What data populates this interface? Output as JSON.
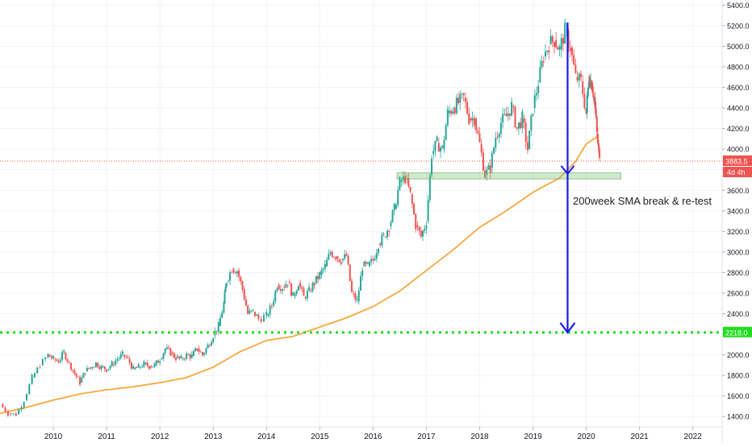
{
  "chart_data": {
    "type": "line",
    "timeframe": "weekly candlestick",
    "ylim": [
      1300,
      5450
    ],
    "xlim": [
      2009.0,
      2022.55
    ],
    "y_ticks": [
      1400,
      1600,
      1800,
      2000,
      2200,
      2400,
      2600,
      2800,
      3000,
      3200,
      3400,
      3600,
      3800,
      4000,
      4200,
      4400,
      4600,
      4800,
      5000,
      5200,
      5400
    ],
    "y_tick_labels": [
      "1400.0",
      "1600.0",
      "1800.0",
      "2000.0",
      "2200.0",
      "2400.0",
      "2600.0",
      "2800.0",
      "3000.0",
      "3200.0",
      "3400.0",
      "3600.0",
      "3800.0",
      "4000.0",
      "4200.0",
      "4400.0",
      "4600.0",
      "4800.0",
      "5000.0",
      "5200.0",
      "5400.0"
    ],
    "x_ticks": [
      {
        "x": 2010.0,
        "label": "2010"
      },
      {
        "x": 2011.0,
        "label": "2011"
      },
      {
        "x": 2012.0,
        "label": "2012"
      },
      {
        "x": 2013.0,
        "label": "2013"
      },
      {
        "x": 2014.0,
        "label": "2014"
      },
      {
        "x": 2015.0,
        "label": "2015"
      },
      {
        "x": 2016.0,
        "label": "2016"
      },
      {
        "x": 2017.0,
        "label": "2017"
      },
      {
        "x": 2018.0,
        "label": "2018"
      },
      {
        "x": 2019.0,
        "label": "2019"
      },
      {
        "x": 2020.0,
        "label": "2020"
      },
      {
        "x": 2021.0,
        "label": "2021"
      },
      {
        "x": 2022.0,
        "label": "2022"
      }
    ],
    "series": [
      {
        "type": "candlestick",
        "up_color": "#26a69a",
        "down_color": "#ef5350",
        "points": [
          [
            2009.0,
            1520
          ],
          [
            2009.15,
            1430
          ],
          [
            2009.3,
            1420
          ],
          [
            2009.45,
            1560
          ],
          [
            2009.6,
            1780
          ],
          [
            2009.75,
            1900
          ],
          [
            2009.9,
            2000
          ],
          [
            2010.0,
            1960
          ],
          [
            2010.1,
            1940
          ],
          [
            2010.2,
            2020
          ],
          [
            2010.3,
            1920
          ],
          [
            2010.4,
            1820
          ],
          [
            2010.5,
            1730
          ],
          [
            2010.6,
            1840
          ],
          [
            2010.7,
            1880
          ],
          [
            2010.8,
            1920
          ],
          [
            2010.9,
            1880
          ],
          [
            2011.0,
            1860
          ],
          [
            2011.1,
            1910
          ],
          [
            2011.2,
            1960
          ],
          [
            2011.3,
            2000
          ],
          [
            2011.4,
            1960
          ],
          [
            2011.5,
            1860
          ],
          [
            2011.6,
            1880
          ],
          [
            2011.7,
            1910
          ],
          [
            2011.8,
            1890
          ],
          [
            2011.9,
            1900
          ],
          [
            2012.0,
            1960
          ],
          [
            2012.1,
            2060
          ],
          [
            2012.2,
            2020
          ],
          [
            2012.3,
            1970
          ],
          [
            2012.4,
            1960
          ],
          [
            2012.5,
            2000
          ],
          [
            2012.6,
            1990
          ],
          [
            2012.7,
            2060
          ],
          [
            2012.8,
            2000
          ],
          [
            2012.9,
            2090
          ],
          [
            2013.0,
            2190
          ],
          [
            2013.1,
            2280
          ],
          [
            2013.2,
            2500
          ],
          [
            2013.25,
            2720
          ],
          [
            2013.35,
            2840
          ],
          [
            2013.45,
            2820
          ],
          [
            2013.55,
            2640
          ],
          [
            2013.65,
            2400
          ],
          [
            2013.75,
            2420
          ],
          [
            2013.85,
            2350
          ],
          [
            2014.0,
            2380
          ],
          [
            2014.1,
            2480
          ],
          [
            2014.2,
            2680
          ],
          [
            2014.3,
            2660
          ],
          [
            2014.4,
            2710
          ],
          [
            2014.5,
            2570
          ],
          [
            2014.6,
            2700
          ],
          [
            2014.7,
            2560
          ],
          [
            2014.8,
            2620
          ],
          [
            2014.9,
            2700
          ],
          [
            2015.0,
            2780
          ],
          [
            2015.1,
            2860
          ],
          [
            2015.2,
            3000
          ],
          [
            2015.3,
            2960
          ],
          [
            2015.4,
            2920
          ],
          [
            2015.5,
            2960
          ],
          [
            2015.6,
            2600
          ],
          [
            2015.7,
            2520
          ],
          [
            2015.8,
            2860
          ],
          [
            2015.9,
            2860
          ],
          [
            2016.0,
            2920
          ],
          [
            2016.1,
            3080
          ],
          [
            2016.2,
            3150
          ],
          [
            2016.3,
            3250
          ],
          [
            2016.4,
            3420
          ],
          [
            2016.5,
            3680
          ],
          [
            2016.6,
            3720
          ],
          [
            2016.7,
            3560
          ],
          [
            2016.8,
            3260
          ],
          [
            2016.9,
            3150
          ],
          [
            2017.0,
            3300
          ],
          [
            2017.1,
            3950
          ],
          [
            2017.2,
            4060
          ],
          [
            2017.3,
            4000
          ],
          [
            2017.4,
            4350
          ],
          [
            2017.5,
            4400
          ],
          [
            2017.6,
            4450
          ],
          [
            2017.7,
            4500
          ],
          [
            2017.8,
            4300
          ],
          [
            2017.9,
            4300
          ],
          [
            2018.0,
            4050
          ],
          [
            2018.1,
            3750
          ],
          [
            2018.2,
            3820
          ],
          [
            2018.3,
            4120
          ],
          [
            2018.4,
            4260
          ],
          [
            2018.5,
            4320
          ],
          [
            2018.6,
            4420
          ],
          [
            2018.7,
            4200
          ],
          [
            2018.8,
            4300
          ],
          [
            2018.9,
            4000
          ],
          [
            2019.0,
            4400
          ],
          [
            2019.1,
            4650
          ],
          [
            2019.2,
            4900
          ],
          [
            2019.3,
            5020
          ],
          [
            2019.4,
            5060
          ],
          [
            2019.5,
            4970
          ],
          [
            2019.6,
            5150
          ],
          [
            2019.7,
            4990
          ],
          [
            2019.8,
            4700
          ],
          [
            2019.9,
            4660
          ],
          [
            2020.0,
            4350
          ],
          [
            2020.05,
            4700
          ],
          [
            2020.1,
            4640
          ],
          [
            2020.15,
            4500
          ],
          [
            2020.2,
            4150
          ],
          [
            2020.25,
            3883.5
          ]
        ]
      },
      {
        "type": "line",
        "color": "#f7a83e",
        "points": [
          [
            2009.0,
            1430
          ],
          [
            2009.5,
            1490
          ],
          [
            2010.0,
            1560
          ],
          [
            2010.5,
            1620
          ],
          [
            2011.0,
            1660
          ],
          [
            2011.5,
            1690
          ],
          [
            2012.0,
            1730
          ],
          [
            2012.5,
            1780
          ],
          [
            2013.0,
            1880
          ],
          [
            2013.5,
            2030
          ],
          [
            2014.0,
            2140
          ],
          [
            2014.5,
            2180
          ],
          [
            2015.0,
            2270
          ],
          [
            2015.5,
            2360
          ],
          [
            2016.0,
            2470
          ],
          [
            2016.5,
            2620
          ],
          [
            2017.0,
            2820
          ],
          [
            2017.5,
            3020
          ],
          [
            2018.0,
            3240
          ],
          [
            2018.5,
            3400
          ],
          [
            2019.0,
            3580
          ],
          [
            2019.5,
            3720
          ],
          [
            2019.8,
            3880
          ],
          [
            2020.0,
            4050
          ],
          [
            2020.2,
            4120
          ]
        ]
      }
    ],
    "price_label": "3883.5",
    "countdown_label": "4d 4h",
    "support_label": "2218.0",
    "support_level": 2218,
    "last_price": 3883.5,
    "zone": {
      "x_start": 2016.45,
      "x_end": 2020.65,
      "y_low": 3710,
      "y_high": 3770
    },
    "arrow": {
      "x": 2019.65,
      "y_top": 5230,
      "y_bottom": 2218,
      "mid_y": 3760
    },
    "annotation": "200week SMA break & re-test",
    "annotation_pos": {
      "x": 2019.75,
      "y": 3460
    }
  }
}
